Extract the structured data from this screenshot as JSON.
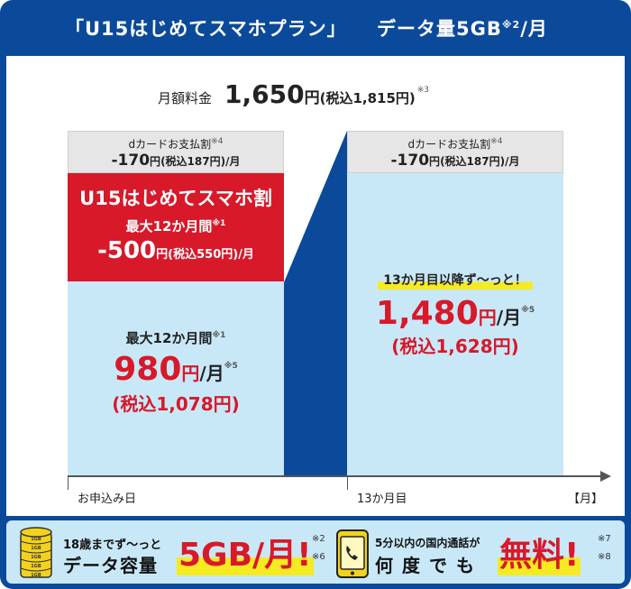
{
  "header": {
    "plan_name": "「U15はじめてスマホプラン」",
    "data_label": "データ量5GB",
    "data_note": "※2",
    "data_per": "/月"
  },
  "monthly_fee": {
    "label": "月額料金",
    "price": "1,650",
    "yen": "円",
    "tax": "(税込1,815円)",
    "note": "※3"
  },
  "left_column": {
    "dcard": {
      "title": "dカードお支払割",
      "note": "※4",
      "amount": "-170",
      "unit": "円",
      "tax": "(税込187円)",
      "per": "/月"
    },
    "discount": {
      "title": "U15はじめてスマホ割",
      "period": "最大12か月間",
      "period_note": "※1",
      "amount": "-500",
      "unit": "円",
      "tax": "(税込550円)",
      "per": "/月"
    },
    "price": {
      "period": "最大12か月間",
      "period_note": "※1",
      "amount": "980",
      "unit": "円",
      "per": "/月",
      "note": "※5",
      "tax": "(税込1,078円)"
    }
  },
  "right_column": {
    "dcard": {
      "title": "dカードお支払割",
      "note": "※4",
      "amount": "-170",
      "unit": "円",
      "tax": "(税込187円)",
      "per": "/月"
    },
    "price": {
      "label": "13か月目以降ず〜っと！",
      "amount": "1,480",
      "unit": "円",
      "per": "/月",
      "note": "※5",
      "tax": "(税込1,628円)"
    }
  },
  "timeline": {
    "start": "お申込み日",
    "month13": "13か月目",
    "unit": "【月】"
  },
  "footer": {
    "data": {
      "line1": "18歳までず〜っと",
      "line2": "データ容量",
      "big": "5GB/月!",
      "notes": [
        "※2",
        "※6"
      ],
      "icon_labels": [
        "1GB",
        "1GB",
        "1GB",
        "1GB",
        "1GB"
      ]
    },
    "call": {
      "line1": "5分以内の国内通話が",
      "line2": "何度でも",
      "big": "無料!",
      "notes": [
        "※7",
        "※8"
      ]
    }
  },
  "colors": {
    "navy": "#0b4a9a",
    "red": "#d7192a",
    "light_blue": "#c8e8f8",
    "yellow": "#f6ea21"
  }
}
